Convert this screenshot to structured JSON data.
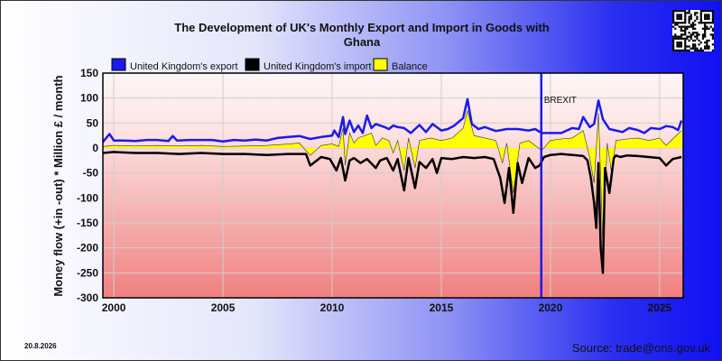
{
  "footer": {
    "date": "20.8.2026",
    "source": "Source: trade@ons.gov.uk"
  },
  "chart_data": {
    "type": "area",
    "title_lines": [
      "The Development of UK's Monthly Export and Import in Goods with",
      "Ghana"
    ],
    "ylabel": "Money flow (+in -out) * Million £ / month",
    "xlabel": "",
    "xlim": [
      1999.5,
      2026.08
    ],
    "ylim": [
      -300,
      150
    ],
    "x_ticks": [
      2000,
      2005,
      2010,
      2015,
      2020,
      2025
    ],
    "y_ticks": [
      150,
      100,
      50,
      0,
      -50,
      -100,
      -150,
      -200,
      -250,
      -300
    ],
    "grid": true,
    "legend_position": "top-left",
    "annotations": [
      {
        "x": 2019.58,
        "label": "BREXIT"
      }
    ],
    "colors": {
      "export": "#1a1aee",
      "import": "#000000",
      "balance": "#ffff00",
      "brexit": "#1a1aee"
    },
    "series": [
      {
        "name": "United Kingdom's export",
        "x": [
          1999.5,
          1999.8,
          2000.0,
          2000.5,
          2001.0,
          2001.5,
          2002.0,
          2002.5,
          2002.7,
          2002.9,
          2003.5,
          2004.0,
          2004.5,
          2005.0,
          2005.5,
          2006.0,
          2006.5,
          2007.0,
          2007.5,
          2008.0,
          2008.5,
          2009.0,
          2009.5,
          2010.0,
          2010.1,
          2010.3,
          2010.5,
          2010.6,
          2010.8,
          2011.0,
          2011.2,
          2011.4,
          2011.6,
          2011.8,
          2012.0,
          2012.2,
          2012.4,
          2012.6,
          2012.8,
          2013.0,
          2013.3,
          2013.6,
          2014.0,
          2014.3,
          2014.6,
          2015.0,
          2015.3,
          2015.6,
          2016.0,
          2016.2,
          2016.4,
          2016.7,
          2017.0,
          2017.5,
          2018.0,
          2018.5,
          2019.0,
          2019.3,
          2019.6,
          2020.0,
          2020.5,
          2021.0,
          2021.3,
          2021.5,
          2021.8,
          2022.0,
          2022.2,
          2022.4,
          2022.7,
          2023.0,
          2023.3,
          2023.6,
          2024.0,
          2024.3,
          2024.6,
          2025.0,
          2025.3,
          2025.6,
          2025.85,
          2026.0
        ],
        "values": [
          12,
          28,
          15,
          15,
          14,
          16,
          16,
          14,
          24,
          15,
          16,
          16,
          16,
          13,
          16,
          15,
          17,
          15,
          20,
          22,
          24,
          18,
          22,
          25,
          35,
          22,
          62,
          28,
          55,
          32,
          45,
          30,
          65,
          40,
          48,
          45,
          42,
          38,
          45,
          42,
          40,
          30,
          46,
          32,
          48,
          35,
          38,
          45,
          60,
          98,
          48,
          38,
          42,
          34,
          38,
          38,
          35,
          38,
          30,
          30,
          30,
          40,
          38,
          62,
          42,
          48,
          95,
          58,
          38,
          35,
          32,
          40,
          36,
          30,
          40,
          38,
          44,
          42,
          36,
          55
        ]
      },
      {
        "name": "United Kingdom's import",
        "x": [
          1999.5,
          2000.0,
          2001.0,
          2002.0,
          2003.0,
          2004.0,
          2005.0,
          2006.0,
          2007.0,
          2008.0,
          2008.8,
          2009.0,
          2009.5,
          2009.9,
          2010.2,
          2010.4,
          2010.6,
          2010.8,
          2011.0,
          2011.3,
          2011.6,
          2012.0,
          2012.2,
          2012.5,
          2012.8,
          2013.0,
          2013.3,
          2013.5,
          2013.8,
          2014.0,
          2014.3,
          2014.6,
          2014.8,
          2015.0,
          2015.5,
          2016.0,
          2016.5,
          2017.0,
          2017.4,
          2017.7,
          2017.9,
          2018.1,
          2018.3,
          2018.5,
          2018.7,
          2019.0,
          2019.3,
          2019.5,
          2019.7,
          2020.0,
          2020.5,
          2021.0,
          2021.5,
          2021.7,
          2021.85,
          2022.0,
          2022.1,
          2022.2,
          2022.3,
          2022.4,
          2022.5,
          2022.7,
          2022.9,
          2023.0,
          2023.2,
          2023.5,
          2024.0,
          2024.5,
          2025.0,
          2025.3,
          2025.6,
          2026.0
        ],
        "values": [
          -10,
          -8,
          -10,
          -10,
          -12,
          -10,
          -12,
          -12,
          -14,
          -12,
          -12,
          -35,
          -18,
          -22,
          -45,
          -20,
          -65,
          -25,
          -20,
          -30,
          -22,
          -40,
          -25,
          -20,
          -45,
          -22,
          -85,
          -20,
          -80,
          -28,
          -40,
          -22,
          -50,
          -20,
          -22,
          -18,
          -20,
          -18,
          -22,
          -60,
          -110,
          -40,
          -130,
          -30,
          -70,
          -20,
          -40,
          -35,
          -18,
          -14,
          -12,
          -14,
          -16,
          -25,
          -60,
          -110,
          -160,
          -30,
          -200,
          -250,
          -40,
          -90,
          -20,
          -15,
          -18,
          -15,
          -16,
          -18,
          -20,
          -35,
          -22,
          -18
        ]
      },
      {
        "name": "Balance",
        "x": [
          1999.5,
          2000.0,
          2001.0,
          2002.0,
          2003.0,
          2004.0,
          2005.0,
          2006.0,
          2007.0,
          2008.0,
          2008.5,
          2009.0,
          2009.5,
          2010.0,
          2010.3,
          2010.5,
          2010.6,
          2010.8,
          2011.0,
          2011.2,
          2011.5,
          2011.8,
          2012.0,
          2012.3,
          2012.6,
          2012.8,
          2013.0,
          2013.3,
          2013.5,
          2013.8,
          2014.0,
          2014.5,
          2015.0,
          2015.5,
          2016.0,
          2016.2,
          2016.5,
          2017.0,
          2017.5,
          2017.8,
          2018.0,
          2018.3,
          2018.6,
          2019.0,
          2019.3,
          2019.6,
          2020.0,
          2020.5,
          2021.0,
          2021.5,
          2021.8,
          2022.0,
          2022.2,
          2022.4,
          2022.6,
          2022.8,
          2023.0,
          2023.5,
          2024.0,
          2024.5,
          2025.0,
          2025.3,
          2025.6,
          2026.0
        ],
        "values": [
          3,
          5,
          4,
          5,
          4,
          5,
          3,
          4,
          5,
          8,
          10,
          -15,
          5,
          8,
          3,
          40,
          -35,
          30,
          10,
          20,
          25,
          30,
          5,
          20,
          15,
          -10,
          15,
          -45,
          20,
          -40,
          15,
          20,
          15,
          20,
          40,
          75,
          25,
          20,
          15,
          -30,
          10,
          -90,
          10,
          15,
          5,
          -5,
          15,
          18,
          20,
          35,
          -20,
          -70,
          70,
          -190,
          10,
          -50,
          15,
          18,
          20,
          15,
          20,
          5,
          18,
          35
        ]
      }
    ]
  }
}
